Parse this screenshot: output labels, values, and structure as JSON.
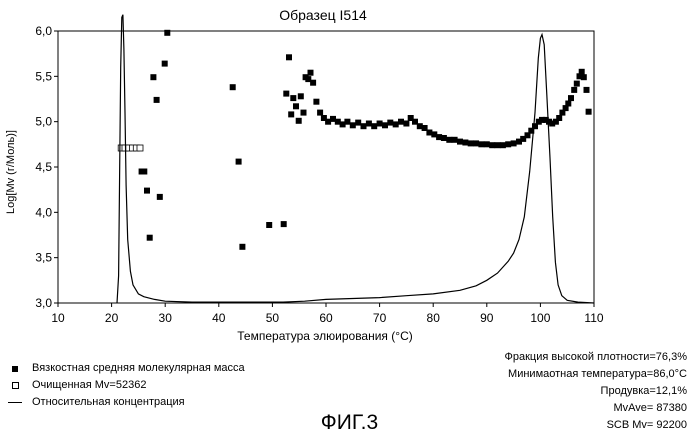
{
  "chart_data": {
    "type": "scatter",
    "title": "Образец I514",
    "xlabel": "Температура элюирования (°C)",
    "ylabel": "Log[Mv (г/Моль)]",
    "xlim": [
      10,
      110
    ],
    "ylim": [
      3.0,
      6.0
    ],
    "x_ticks": [
      "10",
      "20",
      "30",
      "40",
      "50",
      "60",
      "70",
      "80",
      "90",
      "100",
      "110"
    ],
    "y_ticks": [
      "3,0",
      "3,5",
      "4,0",
      "4,5",
      "5,0",
      "5,5",
      "6,0"
    ],
    "series": [
      {
        "name": "Вязкостная средняя молекулярная масса",
        "marker": "filled-square",
        "points": [
          [
            25.6,
            4.45
          ],
          [
            26.1,
            4.45
          ],
          [
            26.6,
            4.24
          ],
          [
            27.1,
            3.72
          ],
          [
            27.8,
            5.49
          ],
          [
            28.4,
            5.24
          ],
          [
            29.0,
            4.17
          ],
          [
            29.9,
            5.64
          ],
          [
            30.4,
            5.98
          ],
          [
            42.6,
            5.38
          ],
          [
            43.7,
            4.56
          ],
          [
            44.4,
            3.62
          ],
          [
            49.4,
            3.86
          ],
          [
            52.1,
            3.87
          ],
          [
            52.6,
            5.31
          ],
          [
            53.1,
            5.71
          ],
          [
            53.5,
            5.08
          ],
          [
            53.9,
            5.26
          ],
          [
            54.4,
            5.17
          ],
          [
            54.9,
            5.01
          ],
          [
            55.3,
            5.28
          ],
          [
            55.8,
            5.1
          ],
          [
            56.2,
            5.49
          ],
          [
            56.7,
            5.47
          ],
          [
            57.1,
            5.54
          ],
          [
            57.6,
            5.43
          ],
          [
            58.2,
            5.22
          ],
          [
            58.9,
            5.1
          ],
          [
            59.6,
            5.04
          ],
          [
            60.4,
            5.0
          ],
          [
            61.3,
            5.03
          ],
          [
            62.2,
            5.0
          ],
          [
            63.1,
            4.97
          ],
          [
            64.0,
            5.0
          ],
          [
            65.0,
            4.96
          ],
          [
            66.0,
            4.99
          ],
          [
            67.0,
            4.95
          ],
          [
            68.0,
            4.98
          ],
          [
            69.0,
            4.95
          ],
          [
            70.0,
            4.98
          ],
          [
            71.0,
            4.96
          ],
          [
            72.0,
            4.99
          ],
          [
            73.0,
            4.97
          ],
          [
            74.0,
            5.0
          ],
          [
            75.0,
            4.98
          ],
          [
            75.8,
            5.04
          ],
          [
            76.6,
            5.0
          ],
          [
            77.5,
            4.95
          ],
          [
            78.4,
            4.93
          ],
          [
            79.3,
            4.88
          ],
          [
            80.2,
            4.86
          ],
          [
            81.1,
            4.83
          ],
          [
            82.0,
            4.82
          ],
          [
            83.0,
            4.8
          ],
          [
            84.0,
            4.8
          ],
          [
            85.0,
            4.78
          ],
          [
            86.0,
            4.77
          ],
          [
            87.0,
            4.76
          ],
          [
            88.0,
            4.76
          ],
          [
            89.0,
            4.75
          ],
          [
            90.0,
            4.75
          ],
          [
            91.0,
            4.74
          ],
          [
            92.0,
            4.74
          ],
          [
            93.0,
            4.74
          ],
          [
            94.0,
            4.75
          ],
          [
            95.0,
            4.76
          ],
          [
            96.0,
            4.78
          ],
          [
            96.8,
            4.81
          ],
          [
            97.6,
            4.85
          ],
          [
            98.3,
            4.9
          ],
          [
            99.0,
            4.95
          ],
          [
            99.7,
            5.0
          ],
          [
            100.3,
            5.02
          ],
          [
            101.0,
            5.02
          ],
          [
            101.6,
            5.0
          ],
          [
            102.2,
            4.98
          ],
          [
            102.9,
            5.0
          ],
          [
            103.5,
            5.04
          ],
          [
            104.1,
            5.1
          ],
          [
            104.7,
            5.15
          ],
          [
            105.2,
            5.2
          ],
          [
            105.7,
            5.26
          ],
          [
            106.3,
            5.35
          ],
          [
            106.8,
            5.42
          ],
          [
            107.3,
            5.5
          ],
          [
            107.7,
            5.55
          ],
          [
            108.1,
            5.49
          ],
          [
            108.6,
            5.35
          ],
          [
            109.0,
            5.11
          ]
        ]
      },
      {
        "name": "Очищенная Mv=52362",
        "marker": "open-square",
        "points": [
          [
            21.8,
            4.71
          ],
          [
            22.5,
            4.71
          ],
          [
            23.2,
            4.71
          ],
          [
            23.9,
            4.71
          ],
          [
            24.6,
            4.71
          ],
          [
            25.3,
            4.71
          ]
        ]
      },
      {
        "name": "Относительная концентрация",
        "marker": "line",
        "points": [
          [
            21.0,
            3.0
          ],
          [
            21.3,
            3.3
          ],
          [
            21.5,
            4.4
          ],
          [
            21.7,
            5.6
          ],
          [
            21.9,
            6.15
          ],
          [
            22.1,
            6.18
          ],
          [
            22.3,
            5.8
          ],
          [
            22.5,
            5.1
          ],
          [
            22.7,
            4.3
          ],
          [
            23.0,
            3.7
          ],
          [
            23.5,
            3.35
          ],
          [
            24.0,
            3.2
          ],
          [
            25.0,
            3.1
          ],
          [
            26.0,
            3.07
          ],
          [
            28.0,
            3.04
          ],
          [
            30.0,
            3.02
          ],
          [
            35.0,
            3.01
          ],
          [
            45.0,
            3.01
          ],
          [
            52.0,
            3.01
          ],
          [
            56.0,
            3.02
          ],
          [
            60.0,
            3.04
          ],
          [
            65.0,
            3.05
          ],
          [
            70.0,
            3.06
          ],
          [
            75.0,
            3.08
          ],
          [
            80.0,
            3.1
          ],
          [
            85.0,
            3.14
          ],
          [
            88.0,
            3.19
          ],
          [
            90.0,
            3.25
          ],
          [
            92.0,
            3.33
          ],
          [
            94.0,
            3.46
          ],
          [
            95.0,
            3.55
          ],
          [
            96.0,
            3.7
          ],
          [
            97.0,
            3.95
          ],
          [
            98.0,
            4.45
          ],
          [
            99.0,
            5.1
          ],
          [
            99.6,
            5.7
          ],
          [
            100.0,
            5.92
          ],
          [
            100.3,
            5.96
          ],
          [
            100.7,
            5.85
          ],
          [
            101.2,
            5.3
          ],
          [
            101.8,
            4.6
          ],
          [
            102.3,
            3.95
          ],
          [
            102.8,
            3.45
          ],
          [
            103.3,
            3.2
          ],
          [
            104.0,
            3.08
          ],
          [
            105.0,
            3.03
          ],
          [
            107.0,
            3.01
          ],
          [
            110.0,
            3.0
          ]
        ]
      }
    ],
    "grid": false,
    "legend_position": "bottom-left"
  },
  "legend": {
    "items": [
      {
        "label": "Вязкостная средняя молекулярная масса",
        "symbol": "filled-square"
      },
      {
        "label": "Очищенная Mv=52362",
        "symbol": "open-square"
      },
      {
        "label": "Относительная концентрация",
        "symbol": "line"
      }
    ]
  },
  "stats": [
    "Фракция высокой плотности=76,3%",
    "Минимаотная температура=86,0°C",
    "Продувка=12,1%",
    "MvAve= 87380",
    "SCB Mv= 92200"
  ],
  "figure_caption": "ФИГ.3"
}
